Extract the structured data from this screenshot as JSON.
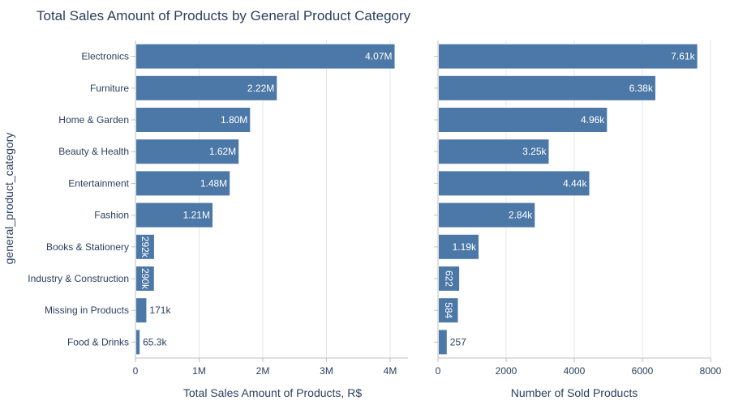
{
  "title": "Total Sales Amount of Products by General Product Category",
  "chart_data": [
    {
      "type": "bar",
      "orientation": "horizontal",
      "categories": [
        "Electronics",
        "Furniture",
        "Home & Garden",
        "Beauty & Health",
        "Entertainment",
        "Fashion",
        "Books & Stationery",
        "Industry & Construction",
        "Missing in Products",
        "Food & Drinks"
      ],
      "values": [
        4070000,
        2220000,
        1800000,
        1620000,
        1480000,
        1210000,
        292000,
        290000,
        171000,
        65300
      ],
      "value_labels": [
        "4.07M",
        "2.22M",
        "1.80M",
        "1.62M",
        "1.48M",
        "1.21M",
        "292k",
        "290k",
        "171k",
        "65.3k"
      ],
      "xlabel": "Total Sales Amount of Products, R$",
      "ylabel": "general_product_category",
      "xlim": [
        0,
        4280000
      ],
      "xticks": [
        0,
        1000000,
        2000000,
        3000000,
        4000000
      ],
      "xtick_labels": [
        "0",
        "1M",
        "2M",
        "3M",
        "4M"
      ],
      "grid": true
    },
    {
      "type": "bar",
      "orientation": "horizontal",
      "categories": [
        "Electronics",
        "Furniture",
        "Home & Garden",
        "Beauty & Health",
        "Entertainment",
        "Fashion",
        "Books & Stationery",
        "Industry & Construction",
        "Missing in Products",
        "Food & Drinks"
      ],
      "values": [
        7610,
        6380,
        4960,
        3250,
        4440,
        2840,
        1190,
        622,
        584,
        257
      ],
      "value_labels": [
        "7.61k",
        "6.38k",
        "4.96k",
        "3.25k",
        "4.44k",
        "2.84k",
        "1.19k",
        "622",
        "584",
        "257"
      ],
      "xlabel": "Number of Sold Products",
      "xlim": [
        0,
        8000
      ],
      "xticks": [
        0,
        2000,
        4000,
        6000,
        8000
      ],
      "xtick_labels": [
        "0",
        "2000",
        "4000",
        "6000",
        "8000"
      ],
      "grid": true
    }
  ],
  "colors": {
    "bar": "#4c78a8",
    "grid": "#e6e6e6",
    "axis": "#bfbfbf",
    "text": "#2a3f5f",
    "inside_label": "#ffffff"
  }
}
